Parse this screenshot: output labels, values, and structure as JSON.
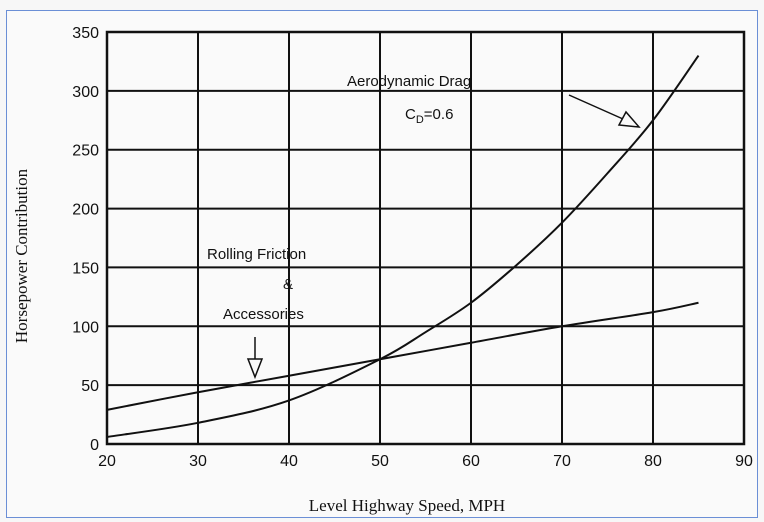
{
  "chart_data": {
    "type": "line",
    "xlabel": "Level Highway Speed, MPH",
    "ylabel": "Horsepower Contribution",
    "xlim": [
      20,
      90
    ],
    "ylim": [
      0,
      350
    ],
    "x_ticks": [
      "20",
      "30",
      "40",
      "50",
      "60",
      "70",
      "80",
      "90"
    ],
    "y_ticks": [
      "0",
      "50",
      "100",
      "150",
      "200",
      "250",
      "300",
      "350"
    ],
    "grid": true,
    "series": [
      {
        "id": "aero",
        "x": [
          20,
          30,
          40,
          50,
          55,
          60,
          65,
          70,
          75,
          80,
          85
        ],
        "y": [
          6,
          18,
          37,
          72,
          95,
          120,
          152,
          188,
          230,
          275,
          330
        ]
      },
      {
        "id": "rolling",
        "x": [
          20,
          30,
          40,
          50,
          60,
          70,
          80,
          85
        ],
        "y": [
          29,
          44,
          58,
          72,
          86,
          100,
          112,
          120
        ]
      }
    ],
    "annotations": {
      "aero_title": "Aerodynamic Drag",
      "aero_cd_c": "C",
      "aero_cd_sub": "D",
      "aero_cd_val": "=0.6",
      "rolling_line1": "Rolling Friction",
      "rolling_line2": "&",
      "rolling_line3": "Accessories"
    }
  }
}
